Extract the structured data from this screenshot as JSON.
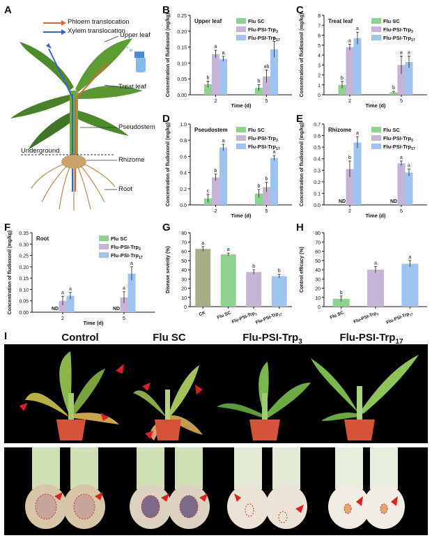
{
  "colors": {
    "flu_sc": "#8fd18f",
    "psi3": "#c5b4d6",
    "psi17": "#9ec3ee",
    "ck": "#a7ad86",
    "phloem": "#e0603a",
    "xylem": "#3a60d6"
  },
  "panel_a": {
    "letter": "A",
    "legend_phloem": "Phloem translocation",
    "legend_xylem": "Xylem translocation",
    "labels": [
      "Upper leaf",
      "Treat leaf",
      "Pseudostem",
      "Underground",
      "Rhizome",
      "Root"
    ]
  },
  "legend": {
    "flu_sc": "Flu SC",
    "psi3": "Flu-PSI-Trp₃",
    "psi17": "Flu-PSI-Trp₁₇"
  },
  "chart_data": [
    {
      "panel": "B",
      "type": "bar",
      "title": "Upper leaf",
      "xlabel": "Time (d)",
      "ylabel": "Concentration of fludioxonil (mg/kg)",
      "categories": [
        "2",
        "5"
      ],
      "ylim": [
        0,
        0.25
      ],
      "yticks": [
        "0.00",
        "0.05",
        "0.10",
        "0.15",
        "0.20",
        "0.25"
      ],
      "series": [
        {
          "name": "Flu SC",
          "values": [
            0.033,
            0.022
          ],
          "err": [
            0.01,
            0.01
          ],
          "letters": [
            "b",
            "b"
          ]
        },
        {
          "name": "Flu-PSI-Trp3",
          "values": [
            0.128,
            0.058
          ],
          "err": [
            0.012,
            0.02
          ],
          "letters": [
            "a",
            "ab"
          ]
        },
        {
          "name": "Flu-PSI-Trp17",
          "values": [
            0.113,
            0.143
          ],
          "err": [
            0.008,
            0.025
          ],
          "letters": [
            "a",
            "a"
          ]
        }
      ]
    },
    {
      "panel": "C",
      "type": "bar",
      "title": "Treat leaf",
      "xlabel": "Time (d)",
      "ylabel": "Concentration of fludioxonil (mg/kg)",
      "categories": [
        "2",
        "5"
      ],
      "ylim": [
        0,
        8
      ],
      "yticks": [
        "0",
        "1",
        "2",
        "3",
        "4",
        "5",
        "6",
        "7",
        "8"
      ],
      "series": [
        {
          "name": "Flu SC",
          "values": [
            1.0,
            0.25
          ],
          "err": [
            0.35,
            0.1
          ],
          "letters": [
            "b",
            "b"
          ]
        },
        {
          "name": "Flu-PSI-Trp3",
          "values": [
            4.8,
            3.0
          ],
          "err": [
            0.3,
            0.9
          ],
          "letters": [
            "a",
            "a"
          ]
        },
        {
          "name": "Flu-PSI-Trp17",
          "values": [
            5.7,
            3.3
          ],
          "err": [
            0.6,
            0.6
          ],
          "letters": [
            "a",
            "a"
          ]
        }
      ]
    },
    {
      "panel": "D",
      "type": "bar",
      "title": "Pseudostem",
      "xlabel": "Time (d)",
      "ylabel": "Concentration of fludioxonil (mg/kg)",
      "categories": [
        "2",
        "5"
      ],
      "ylim": [
        0,
        1.0
      ],
      "yticks": [
        "0.0",
        "0.2",
        "0.4",
        "0.6",
        "0.8",
        "1.0"
      ],
      "series": [
        {
          "name": "Flu SC",
          "values": [
            0.08,
            0.14
          ],
          "err": [
            0.05,
            0.05
          ],
          "letters": [
            "c",
            "b"
          ]
        },
        {
          "name": "Flu-PSI-Trp3",
          "values": [
            0.34,
            0.22
          ],
          "err": [
            0.04,
            0.06
          ],
          "letters": [
            "b",
            "b"
          ]
        },
        {
          "name": "Flu-PSI-Trp17",
          "values": [
            0.71,
            0.58
          ],
          "err": [
            0.04,
            0.03
          ],
          "letters": [
            "a",
            "a"
          ]
        }
      ]
    },
    {
      "panel": "E",
      "type": "bar",
      "title": "Rhizome",
      "xlabel": "Time (d)",
      "ylabel": "Concentration of fludioxonil (mg/kg)",
      "categories": [
        "2",
        "5"
      ],
      "ylim": [
        0,
        0.7
      ],
      "yticks": [
        "0.0",
        "0.1",
        "0.2",
        "0.3",
        "0.4",
        "0.5",
        "0.6",
        "0.7"
      ],
      "series": [
        {
          "name": "Flu SC",
          "values": [
            null,
            null
          ],
          "err": [
            0,
            0
          ],
          "letters": [
            "ND",
            "ND"
          ]
        },
        {
          "name": "Flu-PSI-Trp3",
          "values": [
            0.31,
            0.36
          ],
          "err": [
            0.07,
            0.02
          ],
          "letters": [
            "b",
            "a"
          ]
        },
        {
          "name": "Flu-PSI-Trp17",
          "values": [
            0.54,
            0.28
          ],
          "err": [
            0.05,
            0.03
          ],
          "letters": [
            "a",
            "a"
          ]
        }
      ]
    },
    {
      "panel": "F",
      "type": "bar",
      "title": "Root",
      "xlabel": "Time (d)",
      "ylabel": "Concentration of fludioxonil (mg/kg)",
      "categories": [
        "2",
        "5"
      ],
      "ylim": [
        0,
        0.35
      ],
      "yticks": [
        "0.00",
        "0.05",
        "0.10",
        "0.15",
        "0.20",
        "0.25",
        "0.30",
        "0.35"
      ],
      "series": [
        {
          "name": "Flu SC",
          "values": [
            null,
            null
          ],
          "err": [
            0,
            0
          ],
          "letters": [
            "ND",
            "ND"
          ]
        },
        {
          "name": "Flu-PSI-Trp3",
          "values": [
            0.05,
            0.065
          ],
          "err": [
            0.02,
            0.025
          ],
          "letters": [
            "a",
            "a"
          ]
        },
        {
          "name": "Flu-PSI-Trp17",
          "values": [
            0.072,
            0.17
          ],
          "err": [
            0.015,
            0.03
          ],
          "letters": [
            "a",
            "a"
          ]
        }
      ]
    },
    {
      "panel": "G",
      "type": "bar",
      "title": "",
      "xlabel": "",
      "ylabel": "Disease severity (%)",
      "categories": [
        "CK",
        "Flu SC",
        "Flu-PSI-Trp3",
        "Flu-PSI-Trp17"
      ],
      "ylim": [
        0,
        80
      ],
      "yticks": [
        "0",
        "10",
        "20",
        "30",
        "40",
        "50",
        "60",
        "70",
        "80"
      ],
      "values": [
        62.5,
        56.5,
        37.5,
        33.0
      ],
      "err": [
        2.5,
        1.5,
        2.5,
        2.0
      ],
      "letters": [
        "a",
        "a",
        "b",
        "b"
      ]
    },
    {
      "panel": "H",
      "type": "bar",
      "title": "",
      "xlabel": "",
      "ylabel": "Control efficacy (%)",
      "categories": [
        "Flu SC",
        "Flu-PSI-Trp3",
        "Flu-PSI-Trp17"
      ],
      "ylim": [
        0,
        80
      ],
      "yticks": [
        "0",
        "10",
        "20",
        "30",
        "40",
        "50",
        "60",
        "70",
        "80"
      ],
      "values": [
        8.5,
        40.0,
        46.5
      ],
      "err": [
        3.0,
        3.5,
        3.5
      ],
      "letters": [
        "b",
        "a",
        "a"
      ]
    }
  ],
  "panel_i": {
    "letter": "I",
    "titles": [
      "Control",
      "Flu SC",
      "Flu-PSI-Trp",
      "Flu-PSI-Trp"
    ],
    "subs": [
      "",
      "",
      "3",
      "17"
    ]
  }
}
